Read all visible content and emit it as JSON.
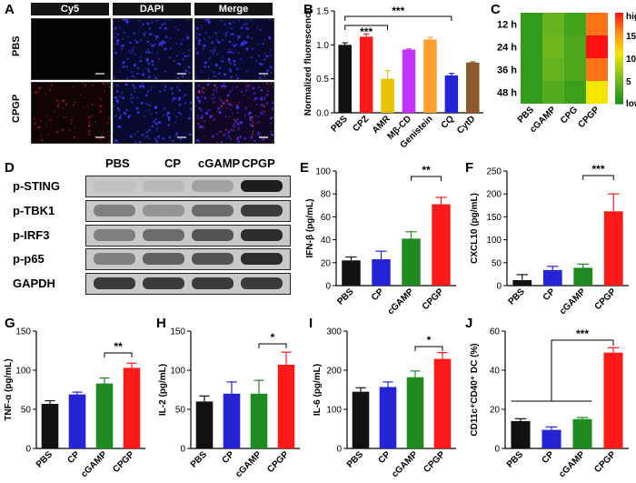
{
  "panel_letters": [
    "A",
    "B",
    "C",
    "D",
    "E",
    "F",
    "G",
    "H",
    "I",
    "J"
  ],
  "microscopy": {
    "columns": [
      "Cy5",
      "DAPI",
      "Merge"
    ],
    "rows": [
      "PBS",
      "CPGP"
    ]
  },
  "western_blot": {
    "lanes": [
      "PBS",
      "CP",
      "cGAMP",
      "CPGP"
    ],
    "proteins": [
      "p-STING",
      "p-TBK1",
      "p-IRF3",
      "p-p65",
      "GAPDH"
    ],
    "intensity": [
      [
        0.1,
        0.18,
        0.35,
        0.95
      ],
      [
        0.55,
        0.45,
        0.65,
        0.85
      ],
      [
        0.55,
        0.65,
        0.75,
        0.9
      ],
      [
        0.55,
        0.7,
        0.75,
        0.9
      ],
      [
        0.85,
        0.85,
        0.85,
        0.85
      ]
    ]
  },
  "colors": {
    "black": "#111111",
    "red": "#ff1a1a",
    "yellow": "#e6c400",
    "purple": "#c232ff",
    "orange": "#ffa030",
    "blue": "#2424d4",
    "brown": "#8c5a2a",
    "green": "#1f8a1f"
  },
  "chart_data": [
    {
      "panel": "B",
      "type": "bar",
      "categories": [
        "PBS",
        "CPZ",
        "AMR",
        "Mβ-CD",
        "Genistein",
        "CQ",
        "CytD"
      ],
      "values": [
        1.0,
        1.12,
        0.5,
        0.93,
        1.08,
        0.55,
        0.74
      ],
      "errors": [
        0.03,
        0.04,
        0.12,
        0.01,
        0.03,
        0.03,
        0.01
      ],
      "bar_colors": [
        "#111111",
        "#ff1a1a",
        "#e6c400",
        "#c232ff",
        "#ffa030",
        "#2424d4",
        "#8c5a2a"
      ],
      "ylabel": "Normalized fluorescence",
      "ylim": [
        0.0,
        1.5
      ],
      "yticks": [
        "0.0",
        "0.5",
        "1.0",
        "1.5"
      ],
      "significance": [
        {
          "from": 0,
          "to": 2,
          "label": "***"
        },
        {
          "from": 0,
          "to": 5,
          "label": "***"
        }
      ]
    },
    {
      "panel": "C",
      "type": "heatmap",
      "rows": [
        "12 h",
        "24 h",
        "36 h",
        "48 h"
      ],
      "columns": [
        "PBS",
        "cGAMP",
        "CPG",
        "CPGP"
      ],
      "values": [
        [
          1.5,
          4.5,
          2.5,
          16.5
        ],
        [
          1.5,
          5.0,
          3.0,
          20.0
        ],
        [
          1.5,
          4.5,
          3.0,
          16.5
        ],
        [
          1.5,
          3.5,
          2.0,
          11.0
        ]
      ],
      "colorbar": {
        "range": [
          0,
          20
        ],
        "ticks": [
          "15",
          "10",
          "5"
        ],
        "top_label": "high",
        "bottom_label": "low"
      }
    },
    {
      "panel": "E",
      "type": "bar",
      "categories": [
        "PBS",
        "CP",
        "cGAMP",
        "CPGP"
      ],
      "values": [
        22,
        23,
        41,
        71
      ],
      "errors": [
        3,
        7,
        6,
        6
      ],
      "ylabel": "IFN-β (pg/mL)",
      "ylim": [
        0,
        100
      ],
      "yticks": [
        "0",
        "20",
        "40",
        "60",
        "80",
        "100"
      ],
      "significance": [
        {
          "from": 2,
          "to": 3,
          "label": "**"
        }
      ]
    },
    {
      "panel": "F",
      "type": "bar",
      "categories": [
        "PBS",
        "CP",
        "cGAMP",
        "CPGP"
      ],
      "values": [
        12,
        34,
        39,
        162
      ],
      "errors": [
        12,
        8,
        8,
        38
      ],
      "ylabel": "CXCL10 (pg/mL)",
      "ylim": [
        0,
        250
      ],
      "yticks": [
        "0",
        "50",
        "100",
        "150",
        "200",
        "250"
      ],
      "significance": [
        {
          "from": 2,
          "to": 3,
          "label": "***"
        }
      ]
    },
    {
      "panel": "G",
      "type": "bar",
      "categories": [
        "PBS",
        "CP",
        "cGAMP",
        "CPGP"
      ],
      "values": [
        57,
        69,
        83,
        103
      ],
      "errors": [
        4,
        3,
        7,
        6
      ],
      "ylabel": "TNF-α (pg/mL)",
      "ylim": [
        0,
        150
      ],
      "yticks": [
        "0",
        "50",
        "100",
        "150"
      ],
      "significance": [
        {
          "from": 2,
          "to": 3,
          "label": "**"
        }
      ]
    },
    {
      "panel": "H",
      "type": "bar",
      "categories": [
        "PBS",
        "CP",
        "cGAMP",
        "CPGP"
      ],
      "values": [
        60,
        70,
        70,
        107
      ],
      "errors": [
        7,
        15,
        17,
        16
      ],
      "ylabel": "IL-2 (pg/mL)",
      "ylim": [
        0,
        150
      ],
      "yticks": [
        "0",
        "50",
        "100",
        "150"
      ],
      "significance": [
        {
          "from": 2,
          "to": 3,
          "label": "*"
        }
      ]
    },
    {
      "panel": "I",
      "type": "bar",
      "categories": [
        "PBS",
        "CP",
        "cGAMP",
        "CPGP"
      ],
      "values": [
        145,
        157,
        182,
        229
      ],
      "errors": [
        10,
        13,
        16,
        16
      ],
      "ylabel": "IL-6 (pg/mL)",
      "ylim": [
        0,
        300
      ],
      "yticks": [
        "0",
        "100",
        "200",
        "300"
      ],
      "significance": [
        {
          "from": 2,
          "to": 3,
          "label": "*"
        }
      ]
    },
    {
      "panel": "J",
      "type": "bar",
      "categories": [
        "PBS",
        "CP",
        "cGAMP",
        "CPGP"
      ],
      "values": [
        14,
        9.5,
        15,
        49
      ],
      "errors": [
        1.2,
        1.5,
        0.8,
        2.5
      ],
      "ylabel": "CD11c⁺CD40⁺ DC (%)",
      "ylim": [
        0,
        60
      ],
      "yticks": [
        "0",
        "20",
        "40",
        "60"
      ],
      "significance": [
        {
          "group_from": [
            0,
            2
          ],
          "to": 3,
          "label": "***"
        }
      ]
    }
  ]
}
